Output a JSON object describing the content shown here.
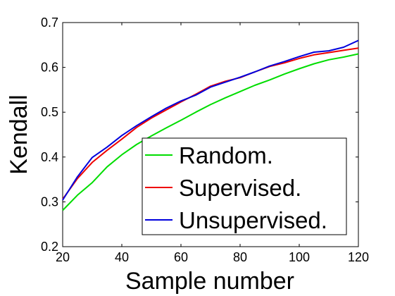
{
  "chart_data": {
    "type": "line",
    "title": "",
    "xlabel": "Sample number",
    "ylabel": "Kendall",
    "xlim": [
      20,
      120
    ],
    "ylim": [
      0.2,
      0.7
    ],
    "xticks": [
      20,
      40,
      60,
      80,
      100,
      120
    ],
    "yticks": [
      0.2,
      0.3,
      0.4,
      0.5,
      0.6,
      0.7
    ],
    "xtick_labels": [
      "20",
      "40",
      "60",
      "80",
      "100",
      "120"
    ],
    "ytick_labels": [
      "0.2",
      "0.3",
      "0.4",
      "0.5",
      "0.6",
      "0.7"
    ],
    "grid": false,
    "legend_position": "bottom-right",
    "x": [
      20,
      25,
      30,
      35,
      40,
      45,
      50,
      55,
      60,
      65,
      70,
      75,
      80,
      85,
      90,
      95,
      100,
      105,
      110,
      115,
      120
    ],
    "series": [
      {
        "name": "Random.",
        "color": "#00dd00",
        "values": [
          0.281,
          0.315,
          0.343,
          0.378,
          0.405,
          0.428,
          0.447,
          0.465,
          0.482,
          0.5,
          0.517,
          0.532,
          0.546,
          0.56,
          0.572,
          0.585,
          0.597,
          0.608,
          0.617,
          0.623,
          0.63
        ]
      },
      {
        "name": "Supervised.",
        "color": "#ee0000",
        "values": [
          0.306,
          0.352,
          0.388,
          0.415,
          0.44,
          0.466,
          0.487,
          0.505,
          0.523,
          0.54,
          0.558,
          0.569,
          0.577,
          0.59,
          0.602,
          0.61,
          0.62,
          0.628,
          0.633,
          0.638,
          0.643
        ]
      },
      {
        "name": "Unsupervised.",
        "color": "#0000dd",
        "values": [
          0.304,
          0.356,
          0.399,
          0.422,
          0.448,
          0.47,
          0.49,
          0.509,
          0.525,
          0.538,
          0.556,
          0.567,
          0.578,
          0.59,
          0.603,
          0.613,
          0.624,
          0.634,
          0.637,
          0.645,
          0.66
        ]
      }
    ]
  }
}
